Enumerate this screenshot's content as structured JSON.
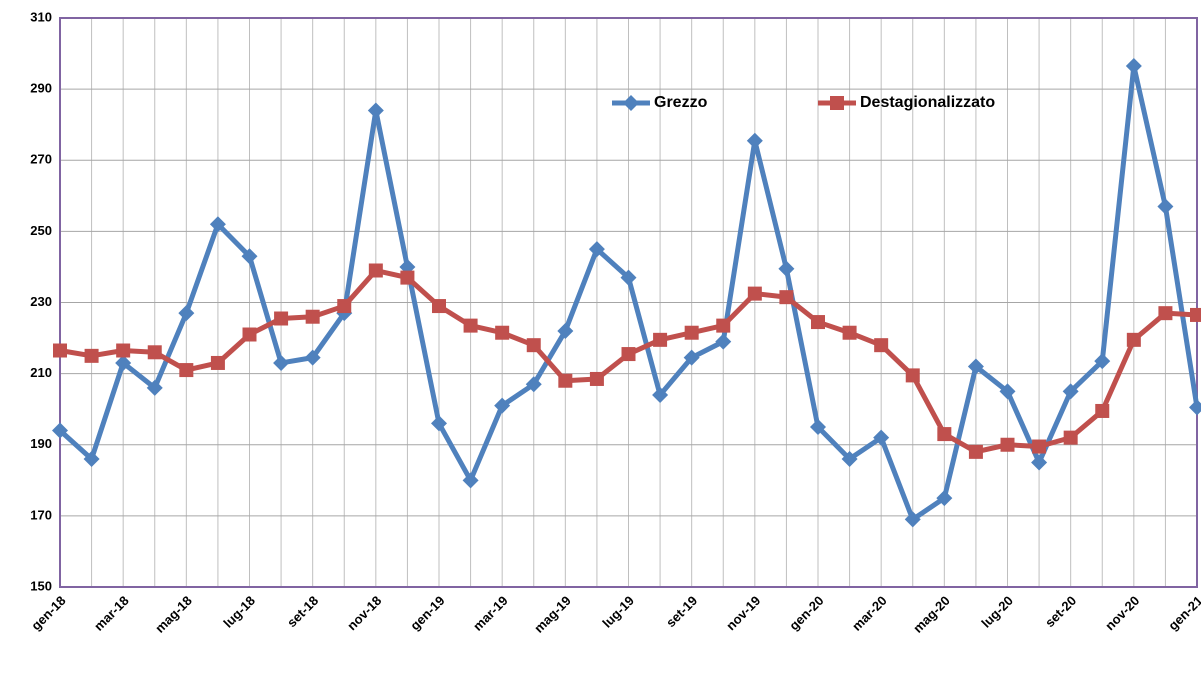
{
  "chart_data": {
    "type": "line",
    "categories": [
      "gen-18",
      null,
      "mar-18",
      null,
      "mag-18",
      null,
      "lug-18",
      null,
      "set-18",
      null,
      "nov-18",
      null,
      "gen-19",
      null,
      "mar-19",
      null,
      "mag-19",
      null,
      "lug-19",
      null,
      "set-19",
      null,
      "nov-19",
      null,
      "gen-20",
      null,
      "mar-20",
      null,
      "mag-20",
      null,
      "lug-20",
      null,
      "set-20",
      null,
      "nov-20",
      null,
      "gen-21"
    ],
    "series": [
      {
        "name": "Grezzo",
        "color": "#4f81bd",
        "marker": "diamond",
        "values": [
          194,
          186,
          213,
          206,
          227,
          252,
          243,
          213,
          214.5,
          227,
          284,
          240,
          196,
          180,
          201,
          207,
          222,
          245,
          237,
          204,
          214.5,
          219,
          275.5,
          239.5,
          195,
          186,
          192,
          169,
          175,
          212,
          205,
          185,
          205,
          213.5,
          296.5,
          257,
          200.5
        ]
      },
      {
        "name": "Destagionalizzato",
        "color": "#c0504d",
        "marker": "square",
        "values": [
          216.5,
          215,
          216.5,
          216,
          211,
          213,
          221,
          225.5,
          226,
          229,
          239,
          237,
          229,
          223.5,
          221.5,
          218,
          208,
          208.5,
          215.5,
          219.5,
          221.5,
          223.5,
          232.5,
          231.5,
          224.5,
          221.5,
          218,
          209.5,
          193,
          188,
          190,
          189.5,
          192,
          199.5,
          219.5,
          227,
          226.5
        ]
      }
    ],
    "ylim": [
      150,
      310
    ],
    "yticks": [
      150,
      170,
      190,
      210,
      230,
      250,
      270,
      290,
      310
    ],
    "grid": true
  }
}
